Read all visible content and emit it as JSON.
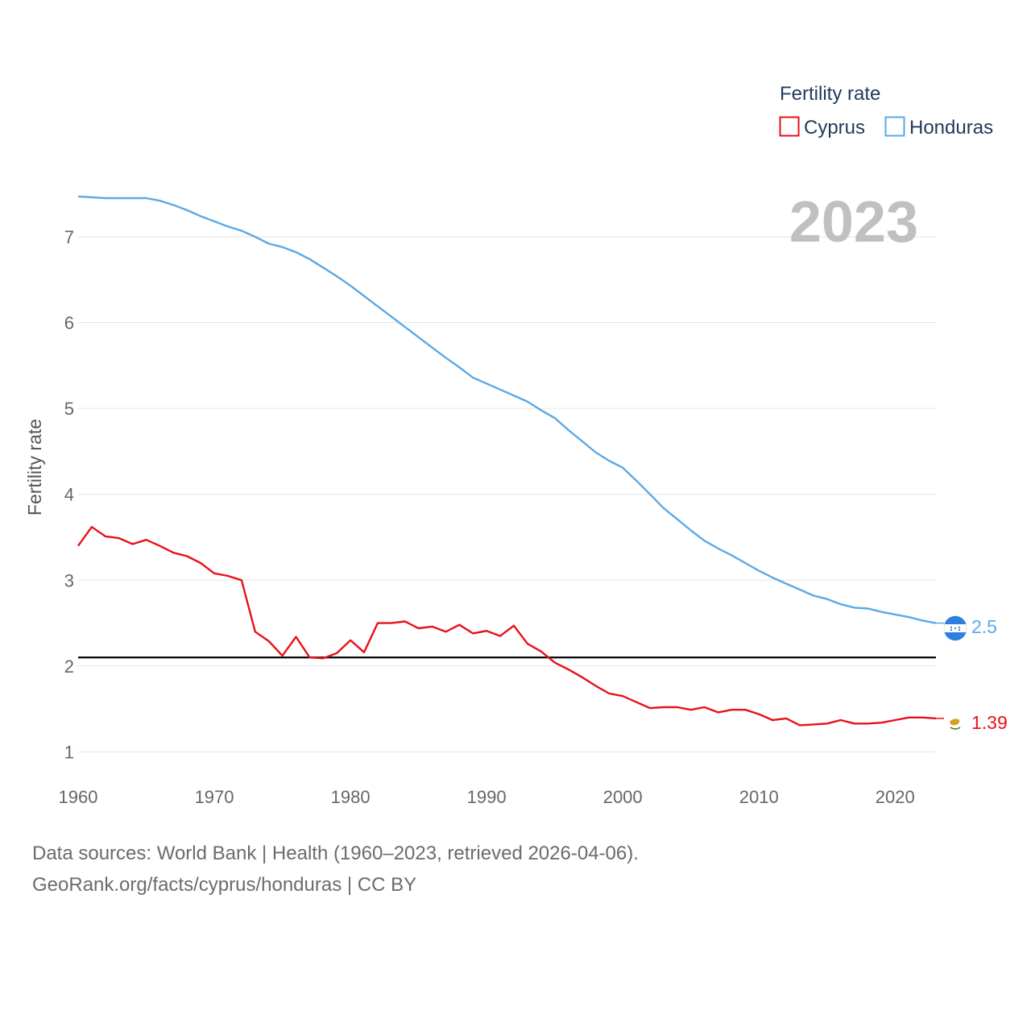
{
  "chart_data": {
    "type": "line",
    "ylabel": "Fertility rate",
    "xlabel": "",
    "xlim": [
      1960,
      2023
    ],
    "ylim": [
      0.92,
      7.6
    ],
    "x_ticks": [
      1960,
      1970,
      1980,
      1990,
      2000,
      2010,
      2020
    ],
    "y_ticks": [
      1,
      2,
      3,
      4,
      5,
      6,
      7
    ],
    "reference_line": {
      "value": 2.1,
      "color": "#000000"
    },
    "legend": {
      "title": "Fertility rate",
      "placement": "top-right"
    },
    "year_label": "2023",
    "x": [
      1960,
      1961,
      1962,
      1963,
      1964,
      1965,
      1966,
      1967,
      1968,
      1969,
      1970,
      1971,
      1972,
      1973,
      1974,
      1975,
      1976,
      1977,
      1978,
      1979,
      1980,
      1981,
      1982,
      1983,
      1984,
      1985,
      1986,
      1987,
      1988,
      1989,
      1990,
      1991,
      1992,
      1993,
      1994,
      1995,
      1996,
      1997,
      1998,
      1999,
      2000,
      2001,
      2002,
      2003,
      2004,
      2005,
      2006,
      2007,
      2008,
      2009,
      2010,
      2011,
      2012,
      2013,
      2014,
      2015,
      2016,
      2017,
      2018,
      2019,
      2020,
      2021,
      2022,
      2023
    ],
    "series": [
      {
        "name": "Cyprus",
        "color": "#e8101a",
        "end_label": "1.39",
        "values": [
          3.4,
          3.62,
          3.51,
          3.49,
          3.42,
          3.47,
          3.4,
          3.32,
          3.28,
          3.2,
          3.08,
          3.05,
          3.0,
          2.4,
          2.29,
          2.12,
          2.34,
          2.1,
          2.09,
          2.15,
          2.3,
          2.16,
          2.5,
          2.5,
          2.52,
          2.44,
          2.46,
          2.4,
          2.48,
          2.38,
          2.41,
          2.35,
          2.47,
          2.26,
          2.17,
          2.04,
          1.96,
          1.87,
          1.77,
          1.68,
          1.65,
          1.58,
          1.51,
          1.52,
          1.52,
          1.49,
          1.52,
          1.46,
          1.49,
          1.49,
          1.44,
          1.37,
          1.39,
          1.31,
          1.32,
          1.33,
          1.37,
          1.33,
          1.33,
          1.34,
          1.37,
          1.4,
          1.4,
          1.39
        ]
      },
      {
        "name": "Honduras",
        "color": "#5aa9e6",
        "end_label": "2.5",
        "values": [
          7.47,
          7.46,
          7.45,
          7.45,
          7.45,
          7.45,
          7.42,
          7.37,
          7.31,
          7.24,
          7.18,
          7.12,
          7.07,
          7.0,
          6.92,
          6.88,
          6.82,
          6.74,
          6.64,
          6.54,
          6.43,
          6.31,
          6.19,
          6.07,
          5.95,
          5.83,
          5.71,
          5.59,
          5.48,
          5.36,
          5.29,
          5.22,
          5.15,
          5.08,
          4.98,
          4.89,
          4.75,
          4.62,
          4.49,
          4.39,
          4.31,
          4.16,
          4.0,
          3.84,
          3.71,
          3.58,
          3.46,
          3.37,
          3.29,
          3.2,
          3.11,
          3.03,
          2.96,
          2.89,
          2.82,
          2.78,
          2.72,
          2.68,
          2.67,
          2.63,
          2.6,
          2.57,
          2.53,
          2.5
        ]
      }
    ]
  },
  "footer": {
    "line1": "Data sources: World Bank | Health (1960–2023, retrieved 2026-04-06).",
    "line2": "GeoRank.org/facts/cyprus/honduras | CC BY"
  },
  "icons": {
    "cyprus": "cyprus-flag-icon",
    "honduras": "honduras-flag-icon"
  }
}
